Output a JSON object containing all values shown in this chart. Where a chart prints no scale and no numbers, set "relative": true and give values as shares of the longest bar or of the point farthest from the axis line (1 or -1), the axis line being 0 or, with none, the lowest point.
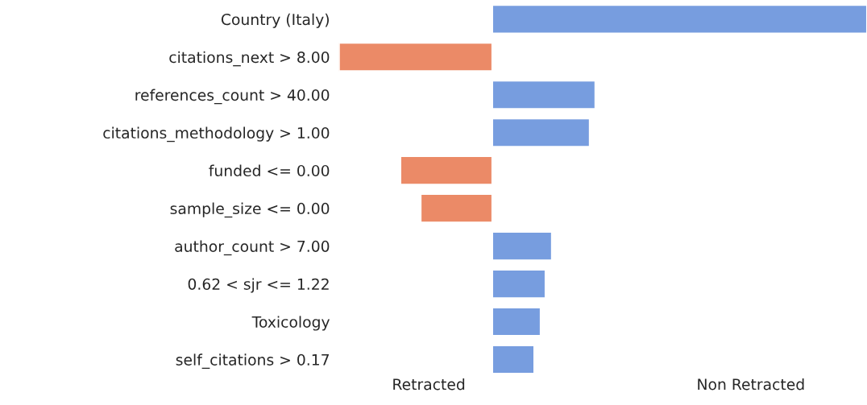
{
  "chart_data": {
    "type": "bar",
    "orientation": "horizontal",
    "relative": true,
    "categories": [
      "Country (Italy)",
      "citations_next > 8.00",
      "references_count > 40.00",
      "citations_methodology > 1.00",
      "funded <= 0.00",
      "sample_size <= 0.00",
      "author_count > 7.00",
      "0.62 < sjr <= 1.22",
      "Toxicology",
      "self_citations > 0.17"
    ],
    "values": [
      1,
      -0.409,
      0.275,
      0.26,
      -0.245,
      -0.191,
      0.159,
      0.142,
      0.129,
      0.112
    ],
    "colors": [
      "#779ddf",
      "#eb8a67",
      "#779ddf",
      "#779ddf",
      "#eb8a67",
      "#eb8a67",
      "#779ddf",
      "#779ddf",
      "#779ddf",
      "#779ddf"
    ],
    "annotations": [
      "Retracted",
      "Non Retracted"
    ],
    "grid": false,
    "legend": false
  }
}
